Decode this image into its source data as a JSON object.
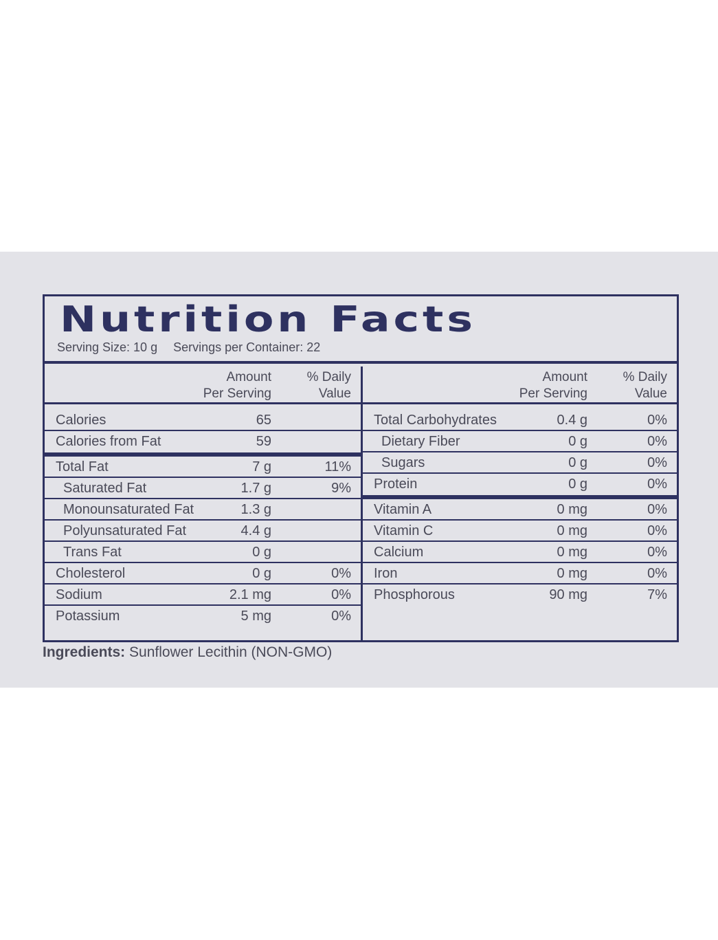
{
  "title": "Nutrition Facts",
  "serving": {
    "size": "Serving Size: 10 g",
    "per_container": "Servings per Container: 22"
  },
  "headers": {
    "amount_line1": "Amount",
    "amount_line2": "Per Serving",
    "dv_line1": "% Daily",
    "dv_line2": "Value"
  },
  "left": {
    "calories": {
      "name": "Calories",
      "amount": "65",
      "dv": ""
    },
    "calories_fat": {
      "name": "Calories from Fat",
      "amount": "59",
      "dv": ""
    },
    "total_fat": {
      "name": "Total Fat",
      "amount": "7 g",
      "dv": "11%"
    },
    "saturated_fat": {
      "name": "Saturated Fat",
      "amount": "1.7 g",
      "dv": "9%"
    },
    "mono_fat": {
      "name": "Monounsaturated Fat",
      "amount": "1.3 g",
      "dv": ""
    },
    "poly_fat": {
      "name": "Polyunsaturated Fat",
      "amount": "4.4 g",
      "dv": ""
    },
    "trans_fat": {
      "name": "Trans Fat",
      "amount": "0 g",
      "dv": ""
    },
    "cholesterol": {
      "name": "Cholesterol",
      "amount": "0 g",
      "dv": "0%"
    },
    "sodium": {
      "name": "Sodium",
      "amount": "2.1 mg",
      "dv": "0%"
    },
    "potassium": {
      "name": "Potassium",
      "amount": "5 mg",
      "dv": "0%"
    }
  },
  "right": {
    "carbs": {
      "name": "Total Carbohydrates",
      "amount": "0.4 g",
      "dv": "0%"
    },
    "fiber": {
      "name": "Dietary Fiber",
      "amount": "0 g",
      "dv": "0%"
    },
    "sugars": {
      "name": "Sugars",
      "amount": "0 g",
      "dv": "0%"
    },
    "protein": {
      "name": "Protein",
      "amount": "0 g",
      "dv": "0%"
    },
    "vitamin_a": {
      "name": "Vitamin A",
      "amount": "0 mg",
      "dv": "0%"
    },
    "vitamin_c": {
      "name": "Vitamin C",
      "amount": "0 mg",
      "dv": "0%"
    },
    "calcium": {
      "name": "Calcium",
      "amount": "0 mg",
      "dv": "0%"
    },
    "iron": {
      "name": "Iron",
      "amount": "0 mg",
      "dv": "0%"
    },
    "phosphorous": {
      "name": "Phosphorous",
      "amount": "90 mg",
      "dv": "7%"
    }
  },
  "ingredients": {
    "label": "Ingredients:",
    "text": "Sunflower Lecithin (NON-GMO)"
  },
  "colors": {
    "ink": "#2e3160",
    "text": "#4a4a58",
    "background": "#e3e3e8"
  }
}
